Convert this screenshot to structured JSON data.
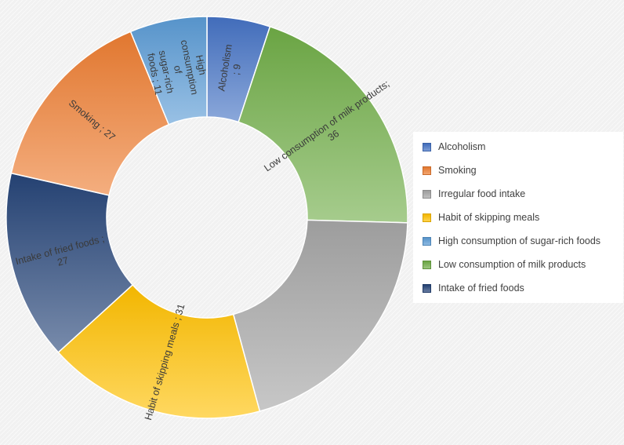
{
  "chart_data": {
    "type": "pie",
    "style": "donut",
    "title": "",
    "slices": [
      {
        "name": "Alcoholism",
        "value": 9,
        "label": "Alcoholism ; 9",
        "color": "#4472c4"
      },
      {
        "name": "Low consumption of milk products",
        "value": 36,
        "label": "Low consumption of milk products; 36",
        "color": "#70ad47"
      },
      {
        "name": "Irregular food intake",
        "value": 36,
        "label": "",
        "color": "#a5a5a5"
      },
      {
        "name": "Habit of skipping meals",
        "value": 31,
        "label": "Habit of skipping meals ; 31",
        "color": "#ffc000"
      },
      {
        "name": "Intake of fried foods",
        "value": 27,
        "label": "Intake of fried foods ; 27",
        "color": "#264478"
      },
      {
        "name": "Smoking",
        "value": 27,
        "label": "Smoking ; 27",
        "color": "#ed7d31"
      },
      {
        "name": "High consumption of sugar-rich foods",
        "value": 11,
        "label": "High consumption of sugar-rich foods ; 11",
        "color": "#5b9bd5"
      }
    ],
    "legend": {
      "position": "right",
      "items": [
        {
          "label": "Alcoholism",
          "color": "#4472c4"
        },
        {
          "label": "Smoking",
          "color": "#ed7d31"
        },
        {
          "label": "Irregular food intake",
          "color": "#a5a5a5"
        },
        {
          "label": "Habit of skipping meals",
          "color": "#ffc000"
        },
        {
          "label": "High consumption of sugar-rich foods",
          "color": "#5b9bd5"
        },
        {
          "label": "Low consumption of milk products",
          "color": "#70ad47"
        },
        {
          "label": "Intake of fried foods",
          "color": "#264478"
        }
      ]
    }
  }
}
